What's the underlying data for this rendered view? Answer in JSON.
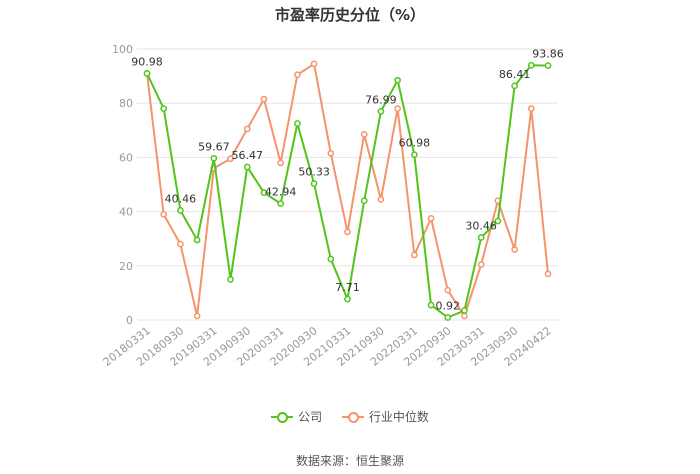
{
  "title": "市盈率历史分位（%）",
  "source": "数据来源：恒生聚源",
  "legend": {
    "company": "公司",
    "industry": "行业中位数"
  },
  "colors": {
    "company": "#52c41a",
    "industry": "#f5936b",
    "grid": "#e6e6e6",
    "axis_text": "#999999",
    "label_text": "#333333"
  },
  "chart_data": {
    "type": "line",
    "title": "市盈率历史分位（%）",
    "ylim": [
      0,
      100
    ],
    "yticks": [
      0,
      20,
      40,
      60,
      80,
      100
    ],
    "grid": true,
    "legend_position": "bottom",
    "x_tick_labels": [
      "20180331",
      "20180930",
      "20190331",
      "20190930",
      "20200331",
      "20200930",
      "20210331",
      "20210930",
      "20220331",
      "20220930",
      "20230331",
      "20230930",
      "20240422"
    ],
    "x": [
      "20180331",
      "20180630",
      "20180930",
      "20181231",
      "20190331",
      "20190630",
      "20190930",
      "20191231",
      "20200331",
      "20200630",
      "20200930",
      "20201231",
      "20210331",
      "20210630",
      "20210930",
      "20211231",
      "20220331",
      "20220630",
      "20220930",
      "20221231",
      "20230331",
      "20230630",
      "20230930",
      "20231231",
      "20240422"
    ],
    "series": [
      {
        "name": "公司",
        "values": [
          90.98,
          78,
          40.46,
          29.5,
          59.67,
          15,
          56.47,
          47,
          42.94,
          72.5,
          50.33,
          22.5,
          7.71,
          44,
          76.99,
          88.5,
          60.98,
          5.5,
          0.92,
          3.5,
          30.46,
          36.5,
          86.41,
          94,
          93.86
        ],
        "labels": {
          "0": "90.98",
          "2": "40.46",
          "4": "59.67",
          "6": "56.47",
          "8": "42.94",
          "10": "50.33",
          "12": "7.71",
          "14": "76.99",
          "16": "60.98",
          "18": "0.92",
          "20": "30.46",
          "22": "86.41",
          "24": "93.86"
        }
      },
      {
        "name": "行业中位数",
        "values": [
          91,
          39,
          28,
          1.5,
          56,
          59.5,
          70.5,
          81.5,
          58,
          90.5,
          94.5,
          61.5,
          32.5,
          68.5,
          44.5,
          78,
          24,
          37.5,
          11,
          1.5,
          20.5,
          44,
          26,
          78,
          17
        ]
      }
    ]
  }
}
